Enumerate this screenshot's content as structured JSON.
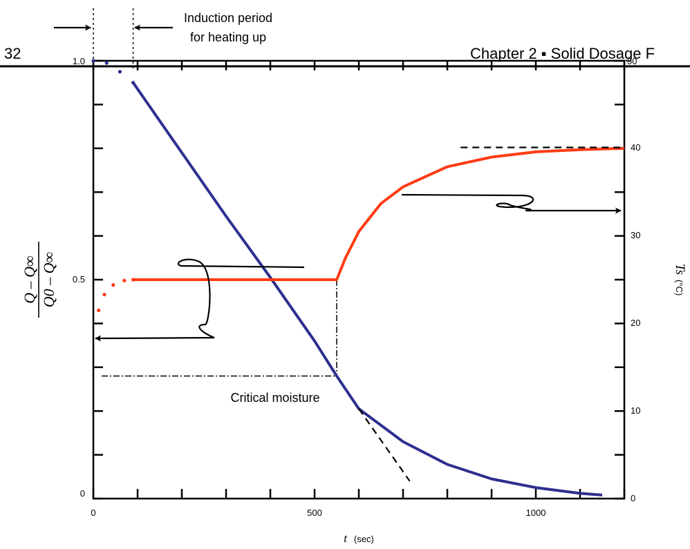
{
  "page": {
    "page_number": "32",
    "running_head": "Chapter 2 ▪ Solid Dosage F"
  },
  "colors": {
    "moisture_curve": "#2d2f8f",
    "temperature_curve": "#ff3b14",
    "axes": "#000000"
  },
  "chart_data": {
    "type": "line",
    "title": "",
    "xlabel_var": "t",
    "xlabel_unit": "(sec)",
    "xlim": [
      0,
      1200
    ],
    "x_ticks": [
      0,
      500,
      1000
    ],
    "ylabel_left": {
      "numerator": "Q – Q∞",
      "denominator": "Q0 – Q∞"
    },
    "ylim_left": [
      0,
      1.0
    ],
    "y_ticks_left": [
      "0",
      "0.5",
      "1.0"
    ],
    "ylabel_right_var": "Ts",
    "ylabel_right_unit": "(°C)",
    "ylim_right": [
      0,
      50
    ],
    "y_ticks_right": [
      "0",
      "10",
      "20",
      "30",
      "40",
      "50"
    ],
    "induction_period_end": 90,
    "critical_point": {
      "x": 550,
      "y": 0.28
    },
    "series": [
      {
        "axis": "left",
        "style": "solid",
        "points": [
          [
            90,
            0.95
          ],
          [
            200,
            0.79
          ],
          [
            300,
            0.645
          ],
          [
            400,
            0.505
          ],
          [
            500,
            0.36
          ],
          [
            550,
            0.28
          ],
          [
            600,
            0.205
          ],
          [
            700,
            0.13
          ],
          [
            800,
            0.078
          ],
          [
            900,
            0.045
          ],
          [
            1000,
            0.025
          ],
          [
            1100,
            0.012
          ],
          [
            1150,
            0.008
          ]
        ]
      },
      {
        "axis": "left",
        "style": "dotted",
        "points": [
          [
            0,
            1.0
          ],
          [
            30,
            0.995
          ],
          [
            60,
            0.975
          ],
          [
            90,
            0.95
          ]
        ]
      },
      {
        "axis": "left",
        "style": "dashed",
        "points": [
          [
            600,
            0.205
          ],
          [
            715,
            0.04
          ]
        ]
      },
      {
        "axis": "right",
        "style": "solid",
        "points": [
          [
            90,
            25
          ],
          [
            550,
            25
          ],
          [
            570,
            27.5
          ],
          [
            600,
            30.5
          ],
          [
            650,
            33.7
          ],
          [
            700,
            35.6
          ],
          [
            800,
            37.9
          ],
          [
            900,
            39.0
          ],
          [
            1000,
            39.6
          ],
          [
            1100,
            39.85
          ],
          [
            1200,
            40.0
          ]
        ]
      },
      {
        "axis": "right",
        "style": "dotted",
        "points": [
          [
            12,
            21.5
          ],
          [
            25,
            23.3
          ],
          [
            45,
            24.4
          ],
          [
            70,
            24.9
          ],
          [
            90,
            25
          ]
        ]
      },
      {
        "axis": "right",
        "style": "dashed",
        "points": [
          [
            830,
            40.1
          ],
          [
            1200,
            40.1
          ]
        ]
      }
    ],
    "annotations": {
      "induction_label": [
        "Induction period",
        "for heating up"
      ],
      "critical_label": "Critical moisture"
    }
  }
}
